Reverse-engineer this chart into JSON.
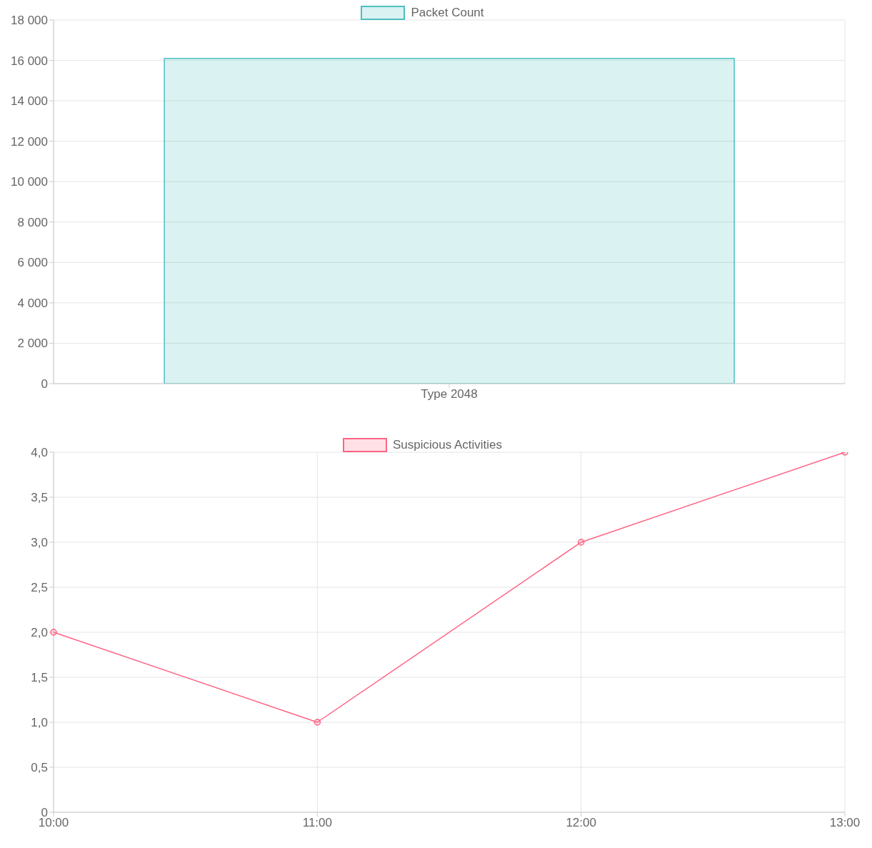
{
  "chart_data": [
    {
      "type": "bar",
      "categories": [
        "Type 2048"
      ],
      "series": [
        {
          "name": "Packet Count",
          "color": "#4bc0c0",
          "values": [
            16100
          ]
        }
      ],
      "ylim": [
        0,
        18000
      ],
      "yticks": [
        0,
        {
          "value": 2000,
          "label": "2 000"
        },
        {
          "value": 4000,
          "label": "4 000"
        },
        {
          "value": 6000,
          "label": "6 000"
        },
        {
          "value": 8000,
          "label": "8 000"
        },
        {
          "value": 10000,
          "label": "10 000"
        },
        {
          "value": 12000,
          "label": "12 000"
        },
        {
          "value": 14000,
          "label": "14 000"
        },
        {
          "value": 16000,
          "label": "16 000"
        },
        {
          "value": 18000,
          "label": "18 000"
        }
      ],
      "grid": true,
      "legend": "top"
    },
    {
      "type": "line",
      "categories": [
        "10:00",
        "11:00",
        "12:00",
        "13:00"
      ],
      "series": [
        {
          "name": "Suspicious Activities",
          "color": "#ff6384",
          "values": [
            2,
            1,
            3,
            4
          ]
        }
      ],
      "ylim": [
        0,
        4
      ],
      "yticks": [
        0,
        {
          "value": 0.5,
          "label": "0,5"
        },
        {
          "value": 1,
          "label": "1,0"
        },
        {
          "value": 1.5,
          "label": "1,5"
        },
        {
          "value": 2,
          "label": "2,0"
        },
        {
          "value": 2.5,
          "label": "2,5"
        },
        {
          "value": 3,
          "label": "3,0"
        },
        {
          "value": 3.5,
          "label": "3,5"
        },
        {
          "value": 4,
          "label": "4,0"
        }
      ],
      "grid": true,
      "legend": "top",
      "marker": "circle",
      "line_style": "solid"
    }
  ]
}
